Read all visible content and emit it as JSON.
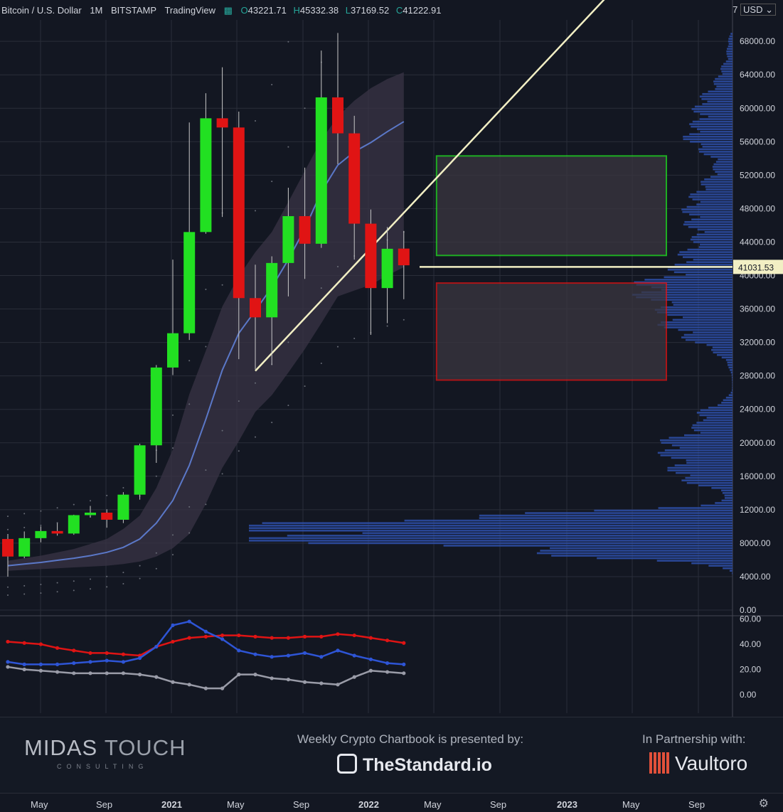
{
  "header": {
    "symbol": "Bitcoin / U.S. Dollar",
    "interval": "1M",
    "exchange": "BITSTAMP",
    "platform": "TradingView",
    "open": "43221.71",
    "high": "45332.38",
    "low": "37169.52",
    "close": "41222.91",
    "currency": "USD",
    "settings_digit": "7"
  },
  "footer": {
    "brand1_word1": "MIDAS",
    "brand1_word2": "TOUCH",
    "brand1_sub": "CONSULTING",
    "presented_by": "Weekly Crypto Chartbook is presented by:",
    "sponsor": "TheStandard.io",
    "partnership": "In Partnership with:",
    "partner": "Vaultoro"
  },
  "time_axis": [
    "May",
    "Sep",
    "2021",
    "May",
    "Sep",
    "2022",
    "May",
    "Sep",
    "2023",
    "May",
    "Sep"
  ],
  "colors": {
    "up": "#22e022",
    "down": "#e01414",
    "bg": "#131722",
    "profile": "#2e4fa8",
    "trend": "#f2efc4",
    "band": "#3a3446",
    "mid": "#5b78c8"
  },
  "chart_data": {
    "type": "candlestick",
    "ylim": [
      0,
      70000
    ],
    "yticks": [
      "0.00",
      "4000.00",
      "8000.00",
      "12000.00",
      "16000.00",
      "20000.00",
      "24000.00",
      "28000.00",
      "32000.00",
      "36000.00",
      "40000.00",
      "44000.00",
      "48000.00",
      "52000.00",
      "56000.00",
      "60000.00",
      "64000.00",
      "68000.00"
    ],
    "last_price_label": "41031.53",
    "last_price": 41031.53,
    "candles": [
      {
        "m": "2020-03",
        "o": 8500,
        "h": 9100,
        "l": 4000,
        "c": 6400
      },
      {
        "m": "2020-04",
        "o": 6400,
        "h": 9400,
        "l": 6200,
        "c": 8600
      },
      {
        "m": "2020-05",
        "o": 8600,
        "h": 10000,
        "l": 8100,
        "c": 9450
      },
      {
        "m": "2020-06",
        "o": 9450,
        "h": 10400,
        "l": 8900,
        "c": 9150
      },
      {
        "m": "2020-07",
        "o": 9150,
        "h": 11400,
        "l": 9000,
        "c": 11350
      },
      {
        "m": "2020-08",
        "o": 11350,
        "h": 12450,
        "l": 11100,
        "c": 11650
      },
      {
        "m": "2020-09",
        "o": 11650,
        "h": 12050,
        "l": 9850,
        "c": 10800
      },
      {
        "m": "2020-10",
        "o": 10800,
        "h": 14100,
        "l": 10400,
        "c": 13800
      },
      {
        "m": "2020-11",
        "o": 13800,
        "h": 19900,
        "l": 13200,
        "c": 19700
      },
      {
        "m": "2020-12",
        "o": 19700,
        "h": 29300,
        "l": 17600,
        "c": 29000
      },
      {
        "m": "2021-01",
        "o": 29000,
        "h": 41900,
        "l": 28100,
        "c": 33100
      },
      {
        "m": "2021-02",
        "o": 33100,
        "h": 58300,
        "l": 32300,
        "c": 45200
      },
      {
        "m": "2021-03",
        "o": 45200,
        "h": 61800,
        "l": 45000,
        "c": 58800
      },
      {
        "m": "2021-04",
        "o": 58800,
        "h": 64900,
        "l": 47000,
        "c": 57700
      },
      {
        "m": "2021-05",
        "o": 57700,
        "h": 59600,
        "l": 30000,
        "c": 37300
      },
      {
        "m": "2021-06",
        "o": 37300,
        "h": 41300,
        "l": 28800,
        "c": 35000
      },
      {
        "m": "2021-07",
        "o": 35000,
        "h": 42300,
        "l": 29300,
        "c": 41500
      },
      {
        "m": "2021-08",
        "o": 41500,
        "h": 50500,
        "l": 37500,
        "c": 47100
      },
      {
        "m": "2021-09",
        "o": 47100,
        "h": 52900,
        "l": 39600,
        "c": 43800
      },
      {
        "m": "2021-10",
        "o": 43800,
        "h": 66900,
        "l": 43300,
        "c": 61300
      },
      {
        "m": "2021-11",
        "o": 61300,
        "h": 69000,
        "l": 53300,
        "c": 57000
      },
      {
        "m": "2021-12",
        "o": 57000,
        "h": 59100,
        "l": 41900,
        "c": 46200
      },
      {
        "m": "2022-01",
        "o": 46200,
        "h": 47900,
        "l": 32900,
        "c": 38500
      },
      {
        "m": "2022-02",
        "o": 38500,
        "h": 45800,
        "l": 34300,
        "c": 43200
      },
      {
        "m": "2022-03",
        "o": 43221.71,
        "h": 45332.38,
        "l": 37169.52,
        "c": 41222.91
      }
    ],
    "ema_mid": [
      5300,
      5500,
      5700,
      5950,
      6200,
      6500,
      6900,
      7500,
      8500,
      10400,
      13100,
      17300,
      22800,
      28700,
      33100,
      35800,
      38600,
      41900,
      45600,
      50000,
      53200,
      54800,
      55900,
      57200,
      58400
    ],
    "band_upper": [
      5900,
      6200,
      6500,
      6900,
      7300,
      7900,
      8500,
      9700,
      11300,
      14600,
      19200,
      25800,
      31000,
      36300,
      39900,
      42800,
      45200,
      48800,
      52500,
      56200,
      59000,
      60900,
      62400,
      63500,
      64300
    ],
    "band_lower": [
      4700,
      4800,
      4900,
      5000,
      5100,
      5200,
      5300,
      5500,
      5800,
      6400,
      7400,
      9100,
      12700,
      17000,
      20200,
      23700,
      25700,
      28400,
      31200,
      34300,
      37500,
      38200,
      38900,
      40000,
      41000
    ],
    "trendline": {
      "from": {
        "m": "2021-06",
        "price": 28600
      },
      "to": {
        "m": "2022-03",
        "price": 47500
      }
    },
    "boxes": [
      {
        "color": "#22e022",
        "top": 54300,
        "bottom": 42400
      },
      {
        "color": "#e01414",
        "top": 39100,
        "bottom": 27500
      }
    ],
    "oscillator": {
      "yticks": [
        "0.00",
        "20.00",
        "40.00",
        "60.00"
      ],
      "red": [
        42,
        41,
        40,
        37,
        35,
        33,
        33,
        32,
        31,
        38,
        42,
        45,
        46,
        47,
        47,
        46,
        45,
        45,
        46,
        46,
        48,
        47,
        45,
        43,
        41
      ],
      "blue": [
        26,
        24,
        24,
        24,
        25,
        26,
        27,
        26,
        29,
        38,
        55,
        58,
        50,
        44,
        35,
        32,
        30,
        31,
        33,
        30,
        35,
        31,
        28,
        25,
        24
      ],
      "grey": [
        22,
        20,
        19,
        18,
        17,
        17,
        17,
        17,
        16,
        14,
        10,
        8,
        5,
        5,
        16,
        16,
        13,
        12,
        10,
        9,
        8,
        14,
        19,
        18,
        17
      ]
    }
  }
}
